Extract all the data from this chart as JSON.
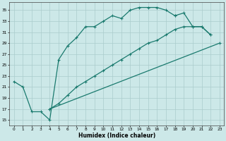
{
  "xlabel": "Humidex (Indice chaleur)",
  "background_color": "#cce8e8",
  "grid_color": "#aacccc",
  "line_color": "#1a7a6e",
  "xlim": [
    -0.5,
    23.5
  ],
  "ylim": [
    14,
    36.5
  ],
  "xticks": [
    0,
    1,
    2,
    3,
    4,
    5,
    6,
    7,
    8,
    9,
    10,
    11,
    12,
    13,
    14,
    15,
    16,
    17,
    18,
    19,
    20,
    21,
    22,
    23
  ],
  "yticks": [
    15,
    17,
    19,
    21,
    23,
    25,
    27,
    29,
    31,
    33,
    35
  ],
  "line1_x": [
    0,
    1,
    2,
    3,
    4,
    5,
    6,
    7,
    8,
    9,
    10,
    11,
    12,
    13,
    14,
    15,
    16,
    17,
    18
  ],
  "line1_y": [
    22,
    21,
    16.5,
    16.5,
    15,
    26,
    28.5,
    30,
    32,
    32,
    33,
    34,
    33.5,
    35,
    35.5,
    35.5,
    35.5,
    35,
    34
  ],
  "line2_x": [
    4,
    23
  ],
  "line2_y": [
    17,
    29
  ],
  "line3_x": [
    4,
    5,
    6,
    7,
    8,
    9,
    10,
    11,
    12,
    13,
    14,
    15,
    16,
    17,
    18,
    19,
    20,
    21,
    22
  ],
  "line3_y": [
    17,
    18,
    19.5,
    21,
    22,
    23,
    24,
    25,
    26,
    27,
    28,
    29,
    29.5,
    30.5,
    31.5,
    32,
    32,
    32,
    30.5
  ],
  "line4_x": [
    18,
    19,
    20,
    21,
    22
  ],
  "line4_y": [
    34,
    34.5,
    32,
    32,
    30.5
  ]
}
